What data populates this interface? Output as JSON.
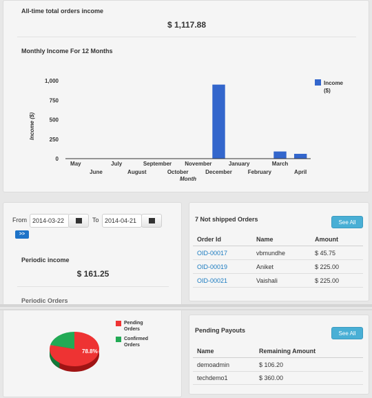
{
  "total_income": {
    "label": "All-time total orders income",
    "value": "$ 1,117.88"
  },
  "monthly_chart": {
    "heading": "Monthly Income For 12 Months",
    "legend_label": "Income ($)",
    "colors": {
      "bar": "#3366cc"
    }
  },
  "chart_data": {
    "type": "bar",
    "title": "Monthly Income For 12 Months",
    "xlabel": "Month",
    "ylabel": "Income ($)",
    "categories": [
      "May",
      "June",
      "July",
      "August",
      "September",
      "October",
      "November",
      "December",
      "January",
      "February",
      "March",
      "April"
    ],
    "series": [
      {
        "name": "Income ($)",
        "values": [
          0,
          0,
          0,
          0,
          0,
          0,
          0,
          950,
          0,
          0,
          92,
          62
        ]
      }
    ],
    "ylim": [
      0,
      1000
    ],
    "yticks": [
      0,
      250,
      500,
      750,
      1000
    ],
    "ytick_labels": [
      "0",
      "250",
      "500",
      "750",
      "1,000"
    ],
    "legend": "right",
    "grid": false
  },
  "period": {
    "from_label": "From",
    "from_value": "2014-03-22",
    "to_label": "To",
    "to_value": "2014-04-21",
    "go_label": ">>",
    "income_label": "Periodic income",
    "income_value": "$ 161.25",
    "orders_label": "Periodic Orders"
  },
  "pie": {
    "percent_label": "78.8%",
    "colors": {
      "pending": "#ee3333",
      "confirmed": "#22aa55"
    },
    "legend": [
      {
        "label": "Pending Orders"
      },
      {
        "label": "Confirmed Orders"
      }
    ],
    "values": {
      "pending": 78.8,
      "confirmed": 21.2
    }
  },
  "not_shipped": {
    "title": "7 Not shipped Orders",
    "see_all": "See All",
    "headers": {
      "order_id": "Order Id",
      "name": "Name",
      "amount": "Amount"
    },
    "rows": [
      {
        "order_id": "OID-00017",
        "name": "vbmundhe",
        "amount": "$ 45.75"
      },
      {
        "order_id": "OID-00019",
        "name": "Aniket",
        "amount": "$ 225.00"
      },
      {
        "order_id": "OID-00021",
        "name": "Vaishali",
        "amount": "$ 225.00"
      }
    ]
  },
  "payouts": {
    "title": "Pending Payouts",
    "see_all": "See All",
    "headers": {
      "name": "Name",
      "remaining": "Remaining Amount"
    },
    "rows": [
      {
        "name": "demoadmin",
        "remaining": "$ 106.20"
      },
      {
        "name": "techdemo1",
        "remaining": "$ 360.00"
      }
    ]
  }
}
